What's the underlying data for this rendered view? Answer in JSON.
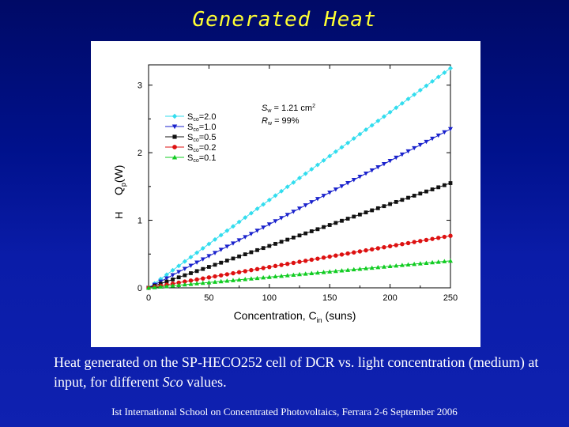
{
  "slide": {
    "title": "Generated Heat",
    "caption_part1": "Heat generated on the SP-HECO252 cell of DCR vs. light concentration (medium) at input, for different ",
    "caption_em": "Sco",
    "caption_part2": " values.",
    "footer": "Ist International School on Concentrated Photovoltaics, Ferrara 2-6 September 2006"
  },
  "chart_data": {
    "type": "line",
    "xlabel": "Concentration, C",
    "xlabel_sub": "in",
    "xlabel_unit": " (suns)",
    "ylabel": "Q",
    "ylabel_sub": "p",
    "ylabel_unit": "(W)",
    "ylabel_h": "H",
    "xlim": [
      0,
      250
    ],
    "ylim": [
      0,
      3.3
    ],
    "xticks": [
      "0",
      "50",
      "100",
      "150",
      "200",
      "250"
    ],
    "yticks": [
      "0",
      "1",
      "2",
      "3"
    ],
    "annotation_line1_main": "S",
    "annotation_line1_sub": "w",
    "annotation_line1_rest": " = 1.21 cm",
    "annotation_line1_sup": "2",
    "annotation_line2_main": "R",
    "annotation_line2_sub": "w",
    "annotation_line2_rest": " = 99%",
    "series": [
      {
        "name": "S",
        "name_sub": "co",
        "name_rest": "=2.0",
        "color": "#33ddee",
        "marker": "diamond",
        "x": [
          0,
          250
        ],
        "y": [
          0,
          3.25
        ]
      },
      {
        "name": "S",
        "name_sub": "co",
        "name_rest": "=1.0",
        "color": "#1a22cc",
        "marker": "triangle-down",
        "x": [
          0,
          250
        ],
        "y": [
          0,
          2.35
        ]
      },
      {
        "name": "S",
        "name_sub": "co",
        "name_rest": "=0.5",
        "color": "#111111",
        "marker": "square",
        "x": [
          0,
          250
        ],
        "y": [
          0,
          1.55
        ]
      },
      {
        "name": "S",
        "name_sub": "co",
        "name_rest": "=0.2",
        "color": "#dd1111",
        "marker": "circle",
        "x": [
          0,
          250
        ],
        "y": [
          0,
          0.77
        ]
      },
      {
        "name": "S",
        "name_sub": "co",
        "name_rest": "=0.1",
        "color": "#11cc22",
        "marker": "triangle-up",
        "x": [
          0,
          250
        ],
        "y": [
          0,
          0.4
        ]
      }
    ]
  }
}
